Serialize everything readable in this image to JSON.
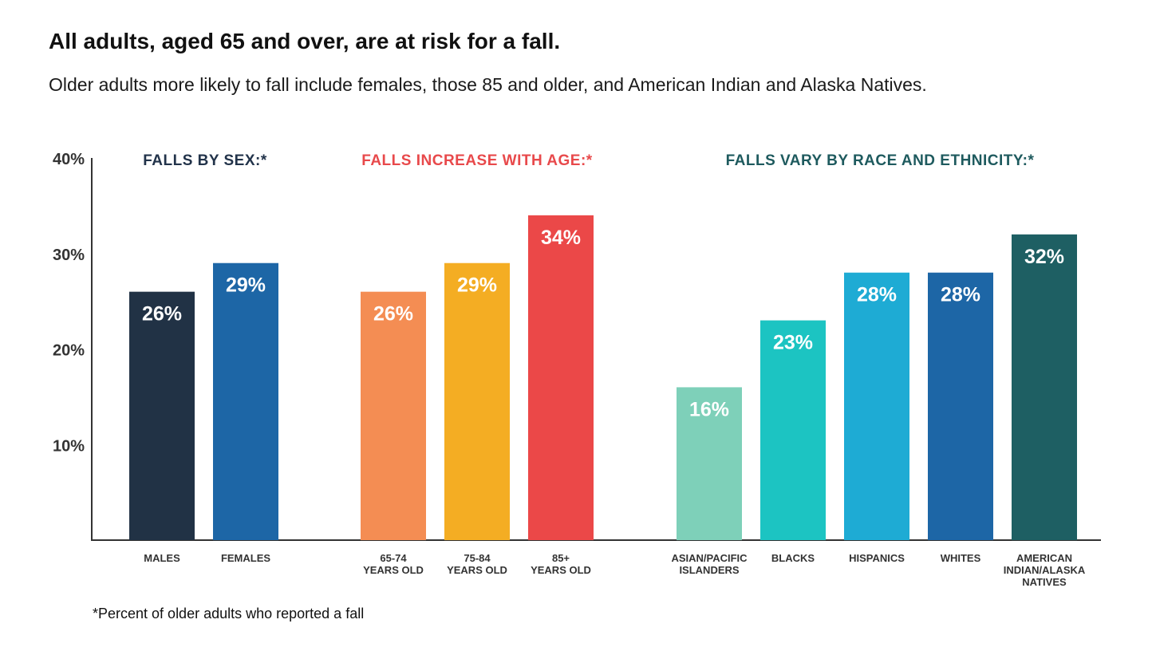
{
  "title": "All adults, aged 65 and over, are at risk for a fall.",
  "subtitle": "Older adults more likely to fall include females, those 85 and older, and American Indian and Alaska Natives.",
  "footnote": "*Percent of older adults who reported a fall",
  "chart_data": {
    "type": "bar",
    "ylim": [
      0,
      40
    ],
    "yticks": [
      {
        "value": 10,
        "label": "10%"
      },
      {
        "value": 20,
        "label": "20%"
      },
      {
        "value": 30,
        "label": "30%"
      },
      {
        "value": 40,
        "label": "40%"
      }
    ],
    "grid": false,
    "groups": [
      {
        "title": "FALLS BY SEX:*",
        "title_color": "#22334a",
        "bars": [
          {
            "category": [
              "MALES"
            ],
            "value": 26,
            "label": "26%",
            "color": "#213245"
          },
          {
            "category": [
              "FEMALES"
            ],
            "value": 29,
            "label": "29%",
            "color": "#1d66a6"
          }
        ]
      },
      {
        "title": "FALLS INCREASE WITH AGE:*",
        "title_color": "#e8494b",
        "bars": [
          {
            "category": [
              "65-74",
              "YEARS OLD"
            ],
            "value": 26,
            "label": "26%",
            "color": "#f48d53"
          },
          {
            "category": [
              "75-84",
              "YEARS OLD"
            ],
            "value": 29,
            "label": "29%",
            "color": "#f4ad23"
          },
          {
            "category": [
              "85+",
              "YEARS OLD"
            ],
            "value": 34,
            "label": "34%",
            "color": "#eb4848"
          }
        ]
      },
      {
        "title": "FALLS VARY BY RACE AND ETHNICITY:*",
        "title_color": "#1e5a5e",
        "bars": [
          {
            "category": [
              "ASIAN/PACIFIC",
              "ISLANDERS"
            ],
            "value": 16,
            "label": "16%",
            "color": "#7ed0b9"
          },
          {
            "category": [
              "BLACKS"
            ],
            "value": 23,
            "label": "23%",
            "color": "#1cc4c2"
          },
          {
            "category": [
              "HISPANICS"
            ],
            "value": 28,
            "label": "28%",
            "color": "#1eabd4"
          },
          {
            "category": [
              "WHITES"
            ],
            "value": 28,
            "label": "28%",
            "color": "#1d66a6"
          },
          {
            "category": [
              "AMERICAN",
              "INDIAN/ALASKA",
              "NATIVES"
            ],
            "value": 32,
            "label": "32%",
            "color": "#1e5f63"
          }
        ]
      }
    ]
  }
}
